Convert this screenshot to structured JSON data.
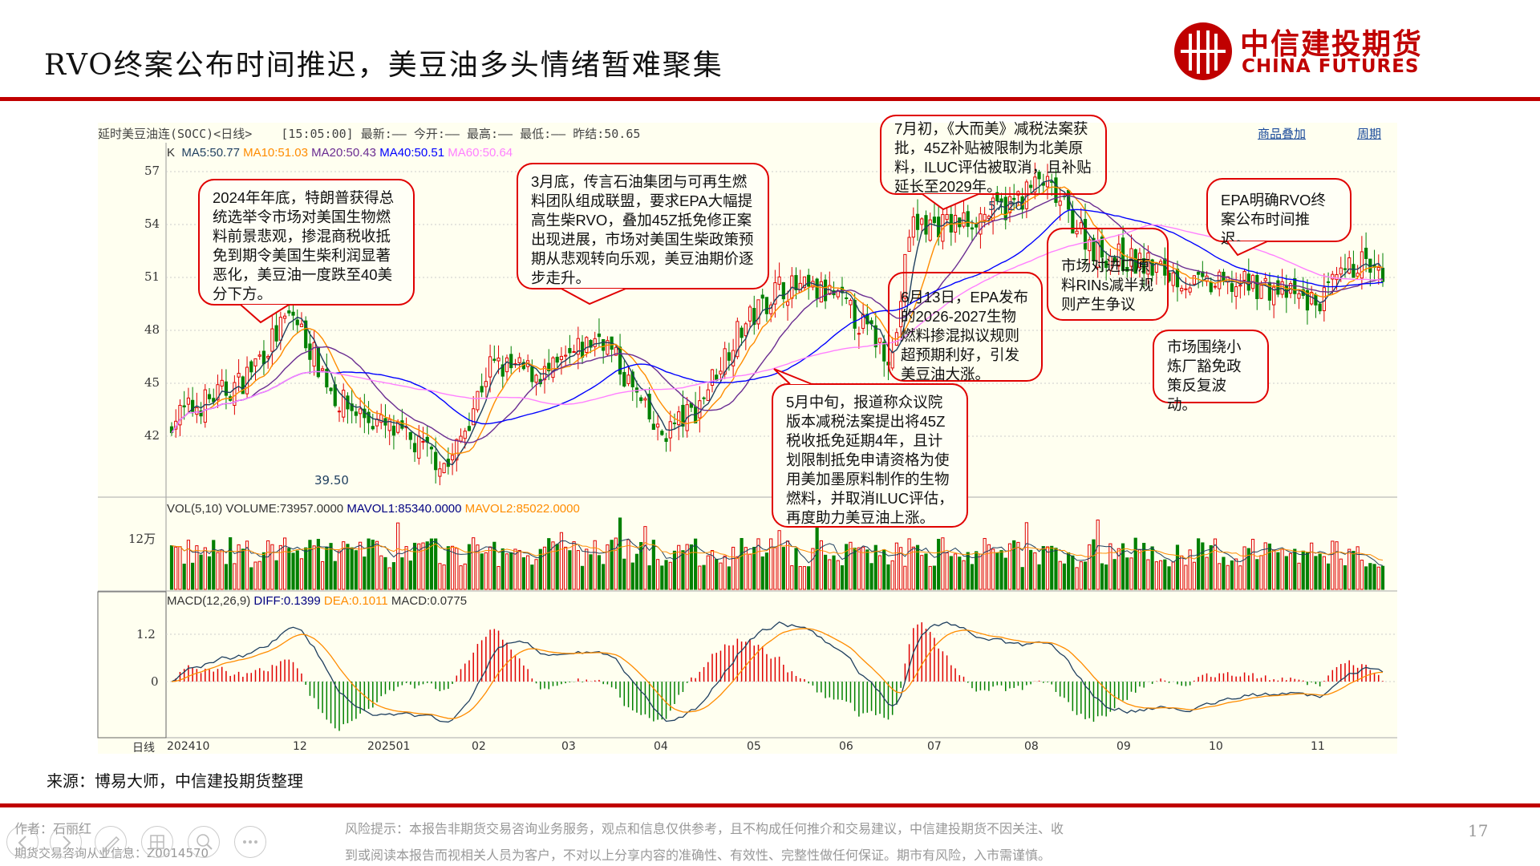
{
  "title": "RVO终案公布时间推迟，美豆油多头情绪暂难聚集",
  "logo": {
    "cn": "中信建投期货",
    "en": "CHINA FUTURES"
  },
  "chart_header": {
    "instrument": "延时美豆油连(SOCC)<日线>",
    "quote": "[15:05:00] 最新:—— 今开:—— 最高:—— 最低:—— 昨结:50.65",
    "link_overlay": "商品叠加",
    "link_period": "周期"
  },
  "ma_legend": {
    "k": "K",
    "ma5": "MA5:50.77",
    "ma10": "MA10:51.03",
    "ma20": "MA20:50.43",
    "ma40": "MA40:50.51",
    "ma60": "MA60:50.64"
  },
  "vol_legend": {
    "vol": "VOL(5,10) VOLUME:73957.0000",
    "mavol1": "MAVOL1:85340.0000",
    "mavol2": "MAVOL2:85022.0000",
    "tick": "12万"
  },
  "macd_legend": {
    "macd": "MACD(12,26,9)",
    "diff": "DIFF:0.1399",
    "dea": "DEA:0.1011",
    "val": "MACD:0.0775",
    "ticks": [
      "1.2",
      "0"
    ]
  },
  "period_label": "日线",
  "colors": {
    "up": "#e00000",
    "down": "#008000",
    "ma5": "#1f3f5f",
    "ma10": "#ff8c00",
    "ma20": "#6a2c91",
    "ma40": "#0000ff",
    "ma60": "#ff80ff",
    "accent": "#c00000"
  },
  "chart_data": {
    "type": "candlestick",
    "y_ticks": [
      "57",
      "54",
      "51",
      "48",
      "45",
      "42"
    ],
    "ylim": [
      39,
      58.5
    ],
    "x_ticks": [
      "202410",
      "12",
      "202501",
      "02",
      "03",
      "04",
      "05",
      "06",
      "07",
      "08",
      "09",
      "10",
      "11"
    ],
    "price_labels": {
      "low": "39.50",
      "high": "57.20"
    },
    "approx_closes": [
      {
        "date": "2024-10-01",
        "close": 43
      },
      {
        "date": "2024-10-25",
        "close": 45
      },
      {
        "date": "2024-11-12",
        "close": 49
      },
      {
        "date": "2024-11-28",
        "close": 44
      },
      {
        "date": "2024-12-20",
        "close": 42
      },
      {
        "date": "2025-01-06",
        "close": 40.3
      },
      {
        "date": "2025-01-20",
        "close": 46
      },
      {
        "date": "2025-02-10",
        "close": 45.5
      },
      {
        "date": "2025-02-28",
        "close": 47.8
      },
      {
        "date": "2025-03-20",
        "close": 42
      },
      {
        "date": "2025-04-02",
        "close": 43.5
      },
      {
        "date": "2025-04-15",
        "close": 47.5
      },
      {
        "date": "2025-05-01",
        "close": 50.5
      },
      {
        "date": "2025-05-20",
        "close": 50
      },
      {
        "date": "2025-06-10",
        "close": 46.5
      },
      {
        "date": "2025-06-16",
        "close": 54
      },
      {
        "date": "2025-07-01",
        "close": 54
      },
      {
        "date": "2025-07-20",
        "close": 55
      },
      {
        "date": "2025-08-01",
        "close": 56.5
      },
      {
        "date": "2025-08-20",
        "close": 52.5
      },
      {
        "date": "2025-09-10",
        "close": 51.5
      },
      {
        "date": "2025-09-25",
        "close": 50.5
      },
      {
        "date": "2025-10-15",
        "close": 50.6
      },
      {
        "date": "2025-11-05",
        "close": 49.5
      },
      {
        "date": "2025-11-20",
        "close": 52
      },
      {
        "date": "2025-11-28",
        "close": 50.77
      }
    ]
  },
  "notes": [
    "2024年年底，特朗普获得总统选举令市场对美国生物燃料前景悲观，掺混商税收抵免到期令美国生柴利润显著恶化，美豆油一度跌至40美分下方。",
    "3月底，传言石油集团与可再生燃料团队组成联盟，要求EPA大幅提高生柴RVO，叠加45Z抵免修正案出现进展，市场对美国生柴政策预期从悲观转向乐观，美豆油期价逐步走升。",
    "7月初，《大而美》减税法案获批，45Z补贴被限制为北美原料，ILUC评估被取消，且补贴延长至2029年。",
    "EPA明确RVO终案公布时间推迟。",
    "6月13日，EPA发布的2026-2027生物燃料掺混拟议规则超预期利好，引发美豆油大涨。",
    "市场对进口原料RINs减半规则产生争议",
    "市场围绕小炼厂豁免政策反复波动。",
    "5月中旬，报道称众议院版本减税法案提出将45Z税收抵免延期4年，且计划限制抵免申请资格为使用美加墨原料制作的生物燃料，并取消ILUC评估，再度助力美豆油上涨。"
  ],
  "source": "来源：博易大师，中信建投期货整理",
  "footer": {
    "author": "作者：石丽红",
    "license": "期货交易咨询从业信息：Z0014570",
    "risk1": "风险提示：本报告非期货交易咨询业务服务，观点和信息仅供参考，且不构成任何推介和交易建议，中信建投期货不因关注、收",
    "risk2": "到或阅读本报告而视相关人员为客户，不对以上分享内容的准确性、有效性、完整性做任何保证。期市有风险，入市需谨慎。",
    "page": "17"
  }
}
